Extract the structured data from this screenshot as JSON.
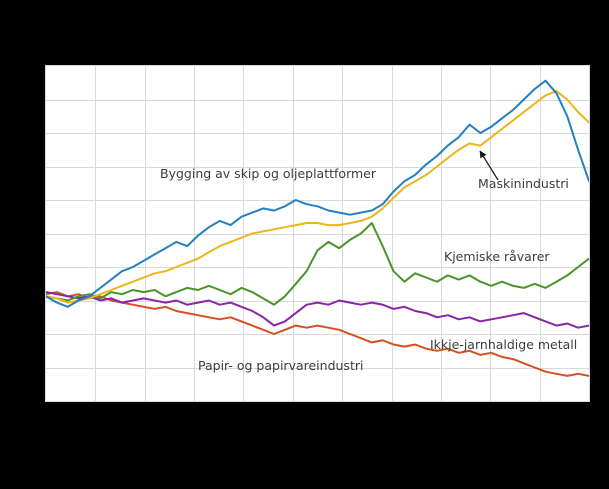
{
  "chart_data": {
    "type": "line",
    "title": "",
    "xlabel": "",
    "ylabel": "",
    "ylim": [
      50,
      210
    ],
    "x_divisions": 11,
    "y_divisions": 10,
    "grid": true,
    "grid_color": "#d9d9d9",
    "plot_background": "#ffffff",
    "page_background": "#000000",
    "legend": "inline-labels",
    "series": [
      {
        "name": "Bygging av skip og oljeplattformer",
        "color": "#2380c3",
        "values": [
          100,
          97,
          95,
          98,
          100,
          104,
          108,
          112,
          114,
          117,
          120,
          123,
          126,
          124,
          129,
          133,
          136,
          134,
          138,
          140,
          142,
          141,
          143,
          146,
          144,
          143,
          141,
          140,
          139,
          140,
          141,
          144,
          150,
          155,
          158,
          163,
          167,
          172,
          176,
          182,
          178,
          181,
          185,
          189,
          194,
          199,
          203,
          197,
          186,
          170,
          155
        ]
      },
      {
        "name": "Maskinindustri",
        "color": "#ebb61c",
        "values": [
          100,
          99,
          97,
          98,
          99,
          101,
          103,
          105,
          107,
          109,
          111,
          112,
          114,
          116,
          118,
          121,
          124,
          126,
          128,
          130,
          131,
          132,
          133,
          134,
          135,
          135,
          134,
          134,
          135,
          136,
          138,
          142,
          147,
          152,
          155,
          158,
          162,
          166,
          170,
          173,
          172,
          176,
          180,
          184,
          188,
          192,
          196,
          198,
          194,
          188,
          183
        ]
      },
      {
        "name": "Kjemiske råvarer",
        "color": "#4a9428",
        "values": [
          100,
          99,
          98,
          100,
          101,
          99,
          102,
          101,
          103,
          102,
          103,
          100,
          102,
          104,
          103,
          105,
          103,
          101,
          104,
          102,
          99,
          96,
          100,
          106,
          112,
          122,
          126,
          123,
          127,
          130,
          135,
          124,
          112,
          107,
          111,
          109,
          107,
          110,
          108,
          110,
          107,
          105,
          107,
          105,
          104,
          106,
          104,
          107,
          110,
          114,
          118
        ]
      },
      {
        "name": "Ikkje-jarnhaldige metall",
        "color": "#8a24a8",
        "values": [
          102,
          101,
          100,
          99,
          100,
          98,
          99,
          97,
          98,
          99,
          98,
          97,
          98,
          96,
          97,
          98,
          96,
          97,
          95,
          93,
          90,
          86,
          88,
          92,
          96,
          97,
          96,
          98,
          97,
          96,
          97,
          96,
          94,
          95,
          93,
          92,
          90,
          91,
          89,
          90,
          88,
          89,
          90,
          91,
          92,
          90,
          88,
          86,
          87,
          85,
          86
        ]
      },
      {
        "name": "Papir- og papirvareindustri",
        "color": "#d4511e",
        "values": [
          101,
          102,
          100,
          101,
          99,
          100,
          98,
          97,
          96,
          95,
          94,
          95,
          93,
          92,
          91,
          90,
          89,
          90,
          88,
          86,
          84,
          82,
          84,
          86,
          85,
          86,
          85,
          84,
          82,
          80,
          78,
          79,
          77,
          76,
          77,
          75,
          74,
          75,
          73,
          74,
          72,
          73,
          71,
          70,
          68,
          66,
          64,
          63,
          62,
          63,
          62
        ]
      }
    ],
    "annotations": [
      {
        "text": "Bygging av skip og oljeplattformer",
        "target_series": "Bygging av skip og oljeplattformer"
      },
      {
        "text": "Maskinindustri",
        "target_series": "Maskinindustri",
        "arrow": true
      },
      {
        "text": "Kjemiske råvarer",
        "target_series": "Kjemiske råvarer"
      },
      {
        "text": "Ikkje-jarnhaldige metall",
        "target_series": "Ikkje-jarnhaldige metall"
      },
      {
        "text": "Papir- og papirvareindustri",
        "target_series": "Papir- og papirvareindustri"
      }
    ]
  }
}
